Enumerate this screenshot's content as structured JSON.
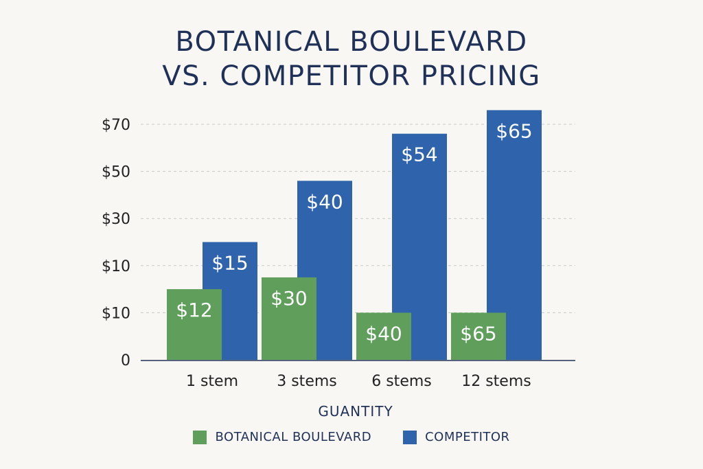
{
  "chart_data": {
    "type": "bar",
    "title_lines": [
      "BOTANICAL BOULEVARD",
      "VS. COMPETITOR PRICING"
    ],
    "xlabel": "GUANTITY",
    "ylabel": "",
    "categories": [
      "1 stem",
      "3 stems",
      "6 stems",
      "12 stems"
    ],
    "y_tick_labels": [
      "0",
      "$10",
      "$10",
      "$30",
      "$50",
      "$70"
    ],
    "grid": true,
    "legend_position": "bottom",
    "series": [
      {
        "name": "BOTANICAL BOULEVARD",
        "color": "#5f9e5b",
        "value_labels": [
          "$12",
          "$30",
          "$40",
          "$65"
        ],
        "bar_levels": [
          1.5,
          1.75,
          1.0,
          1.0
        ]
      },
      {
        "name": "COMPETITOR",
        "color": "#2f64ad",
        "value_labels": [
          "$15",
          "$40",
          "$54",
          "$65"
        ],
        "bar_levels": [
          2.5,
          3.8,
          4.8,
          5.3
        ]
      }
    ]
  }
}
